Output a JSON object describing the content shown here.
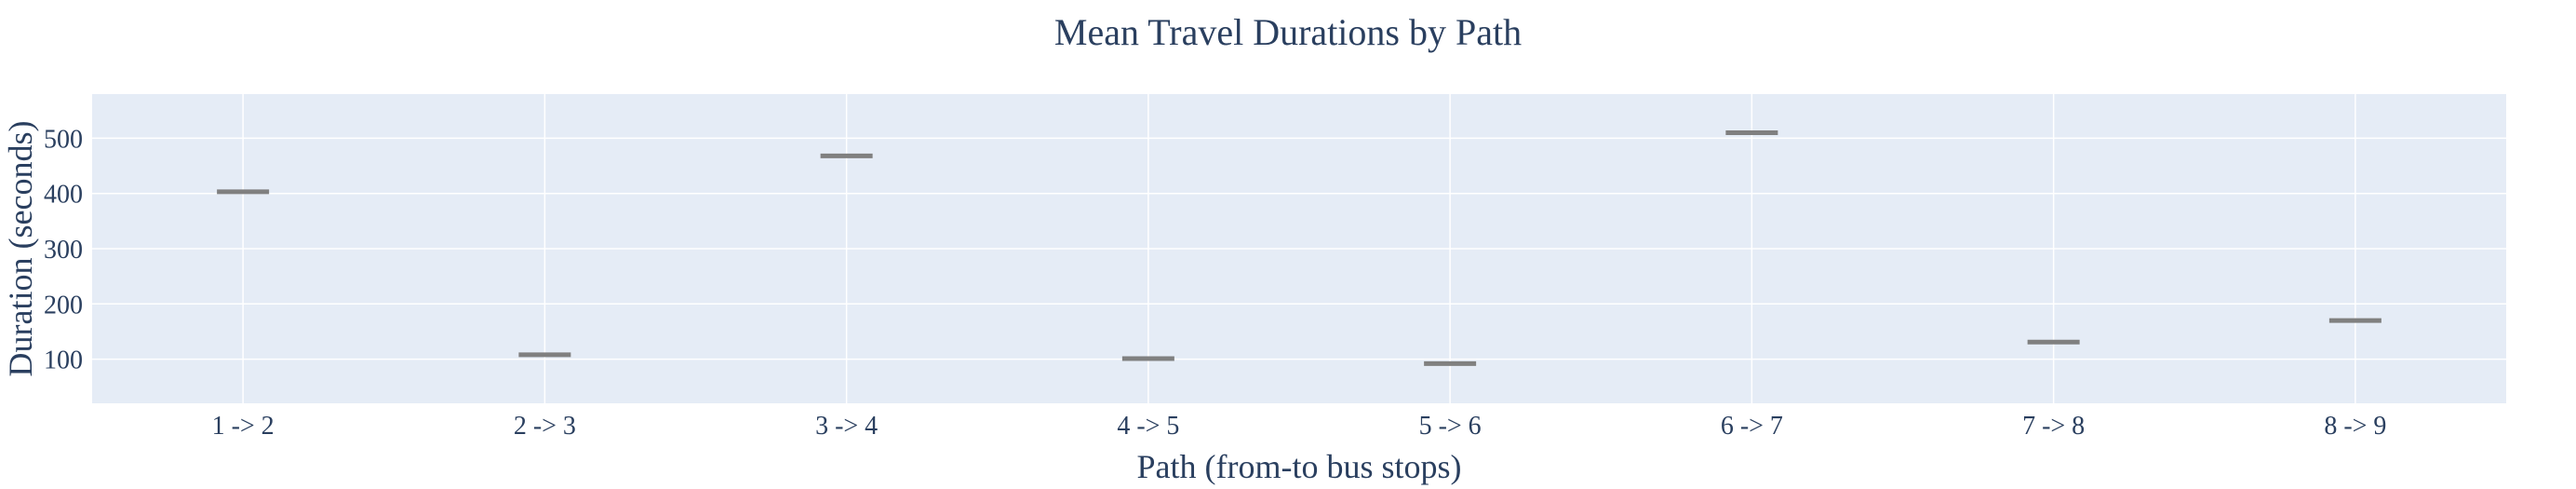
{
  "chart_data": {
    "type": "bar",
    "title": "Mean Travel Durations by Path",
    "xlabel": "Path (from-to bus stops)",
    "ylabel": "Duration (seconds)",
    "categories": [
      "1 -> 2",
      "2 -> 3",
      "3 -> 4",
      "4 -> 5",
      "5 -> 6",
      "6 -> 7",
      "7 -> 8",
      "8 -> 9"
    ],
    "values": [
      403,
      108,
      468,
      101,
      92,
      510,
      131,
      170
    ],
    "yticks": [
      100,
      200,
      300,
      400,
      500
    ],
    "ylim": [
      20,
      580
    ],
    "grid": true,
    "legend": "none",
    "colors": {
      "plot_background": "#e5ecf6",
      "gridline": "#ffffff",
      "marker": "#808080",
      "text": "#2a3f5f"
    }
  }
}
